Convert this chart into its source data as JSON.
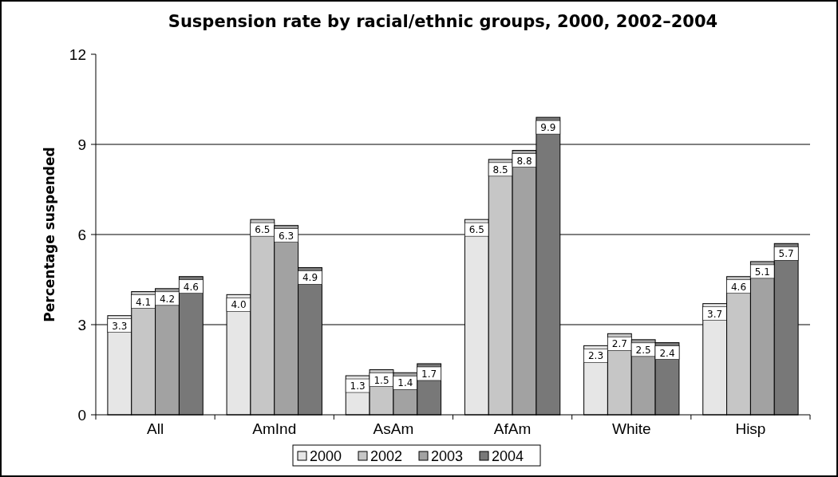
{
  "chart_data": {
    "type": "bar",
    "title": "Suspension rate by racial/ethnic groups, 2000, 2002–2004",
    "ylabel": "Percentage suspended",
    "categories": [
      "All",
      "AmInd",
      "AsAm",
      "AfAm",
      "White",
      "Hisp"
    ],
    "series": [
      {
        "name": "2000",
        "color": "#e6e6e6",
        "values": [
          3.3,
          4.0,
          1.3,
          6.5,
          2.3,
          3.7
        ],
        "value_labels": [
          "3.3",
          "4.0",
          "1.3",
          "6.5",
          "2.3",
          "3.7"
        ]
      },
      {
        "name": "2002",
        "color": "#c6c6c6",
        "values": [
          4.1,
          6.5,
          1.5,
          8.5,
          2.7,
          4.6
        ],
        "value_labels": [
          "4.1",
          "6.5",
          "1.5",
          "8.5",
          "2.7",
          "4.6"
        ]
      },
      {
        "name": "2003",
        "color": "#a2a2a2",
        "values": [
          4.2,
          6.3,
          1.4,
          8.8,
          2.5,
          5.1
        ],
        "value_labels": [
          "4.2",
          "6.3",
          "1.4",
          "8.8",
          "2.5",
          "5.1"
        ]
      },
      {
        "name": "2004",
        "color": "#787878",
        "values": [
          4.6,
          4.9,
          1.7,
          9.9,
          2.4,
          5.7
        ],
        "value_labels": [
          "4.6",
          "4.9",
          "1.7",
          "9.9",
          "2.4",
          "5.7"
        ]
      }
    ],
    "ylim": [
      0,
      12
    ],
    "yticks": [
      0,
      3,
      6,
      9,
      12
    ],
    "grid": "y",
    "legend": "bottom"
  }
}
